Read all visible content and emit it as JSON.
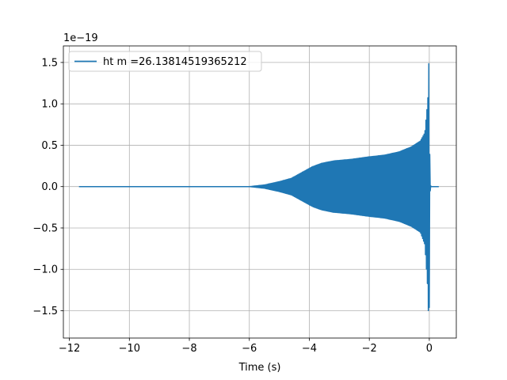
{
  "chart_data": {
    "type": "line",
    "title": "",
    "xlabel": "Time (s)",
    "ylabel": "",
    "offset_text": "1e−19",
    "xlim": [
      -12.2,
      0.9
    ],
    "ylim": [
      -1.83,
      1.7
    ],
    "xticks": [
      -12,
      -10,
      -8,
      -6,
      -4,
      -2,
      0
    ],
    "xtick_labels": [
      "−12",
      "−10",
      "−8",
      "−6",
      "−4",
      "−2",
      "0"
    ],
    "yticks": [
      -1.5,
      -1.0,
      -0.5,
      0.0,
      0.5,
      1.0,
      1.5
    ],
    "ytick_labels": [
      "−1.5",
      "−1.0",
      "−0.5",
      "0.0",
      "0.5",
      "1.0",
      "1.5"
    ],
    "grid": true,
    "legend_placement": "upper-left",
    "series": [
      {
        "name": "ht m =26.13814519365212",
        "color": "#1f77b4",
        "x_range": [
          -11.68,
          0.32
        ],
        "envelope": {
          "t": [
            -11.68,
            -6.0,
            -5.5,
            -5.0,
            -4.6,
            -4.2,
            -3.9,
            -3.6,
            -3.2,
            -2.6,
            -2.0,
            -1.5,
            -1.0,
            -0.6,
            -0.3,
            -0.15,
            -0.05,
            -0.02,
            0.0,
            0.02,
            0.05,
            0.32
          ],
          "upper": [
            0.0,
            0.0,
            0.02,
            0.06,
            0.1,
            0.18,
            0.24,
            0.28,
            0.31,
            0.33,
            0.36,
            0.38,
            0.42,
            0.48,
            0.55,
            0.65,
            1.05,
            1.52,
            1.3,
            0.08,
            0.0,
            0.0
          ],
          "lower": [
            0.0,
            0.0,
            -0.02,
            -0.06,
            -0.1,
            -0.18,
            -0.24,
            -0.28,
            -0.31,
            -0.33,
            -0.36,
            -0.38,
            -0.42,
            -0.48,
            -0.55,
            -0.7,
            -1.25,
            -1.68,
            -1.45,
            -0.08,
            0.0,
            0.0
          ]
        }
      }
    ]
  }
}
